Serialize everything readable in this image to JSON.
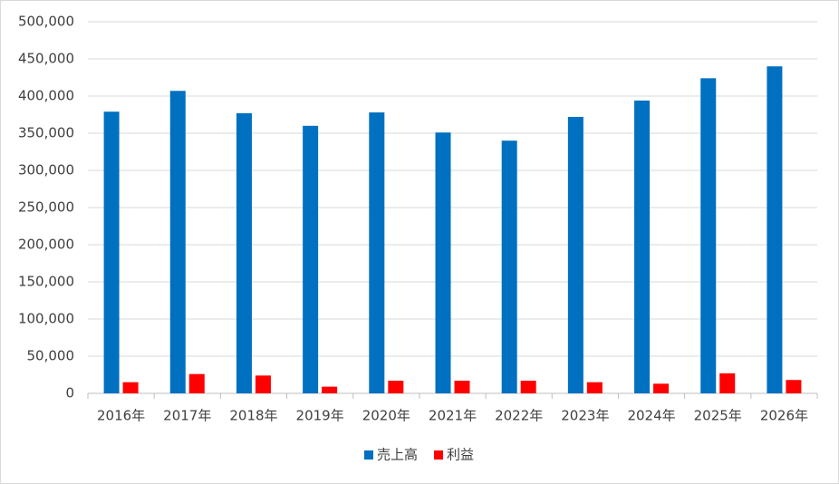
{
  "chart_data": {
    "type": "bar",
    "categories": [
      "2016年",
      "2017年",
      "2018年",
      "2019年",
      "2020年",
      "2021年",
      "2022年",
      "2023年",
      "2024年",
      "2025年",
      "2026年"
    ],
    "series": [
      {
        "name": "売上高",
        "color": "#0070c0",
        "values": [
          379000,
          407000,
          377000,
          360000,
          378000,
          351000,
          340000,
          372000,
          394000,
          424000,
          440000
        ]
      },
      {
        "name": "利益",
        "color": "#ff0000",
        "values": [
          15000,
          26000,
          24000,
          9000,
          17000,
          17000,
          17000,
          15000,
          13000,
          27000,
          18000
        ]
      }
    ],
    "ylim": [
      0,
      500000
    ],
    "yticks": [
      0,
      {
        "value": 50000,
        "label": "50,000"
      },
      {
        "value": 100000,
        "label": "100,000"
      },
      {
        "value": 150000,
        "label": "150,000"
      },
      {
        "value": 200000,
        "label": "200,000"
      },
      {
        "value": 250000,
        "label": "250,000"
      },
      {
        "value": 300000,
        "label": "300,000"
      },
      {
        "value": 350000,
        "label": "350,000"
      },
      {
        "value": 400000,
        "label": "400,000"
      },
      {
        "value": 450000,
        "label": "450,000"
      },
      {
        "value": 500000,
        "label": "500,000"
      }
    ],
    "grid": true,
    "legend": "bottom"
  }
}
